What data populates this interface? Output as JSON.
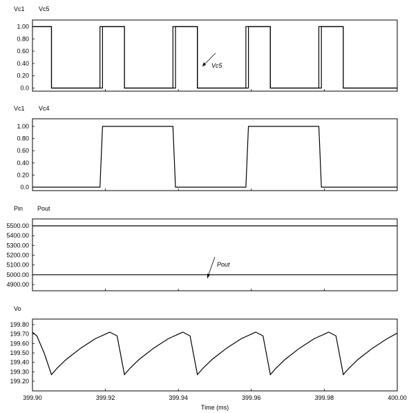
{
  "chart_data": [
    {
      "type": "line",
      "legend": [
        "Vc1",
        "Vc5"
      ],
      "ylim": [
        0,
        1.0
      ],
      "yticks": [
        "1.00",
        "0.80",
        "0.60",
        "0.40",
        "0.20",
        "0.0"
      ],
      "annotation": "Vc5",
      "series": [
        {
          "name": "Vc1",
          "x": [
            399.9,
            399.9052,
            399.9052,
            399.9192,
            399.9192,
            399.9252,
            399.9252,
            399.9392,
            399.9392,
            399.9452,
            399.9452,
            399.9592,
            399.9592,
            399.9652,
            399.9652,
            399.9792,
            399.9792,
            399.9852,
            399.9852,
            400.0
          ],
          "y": [
            1,
            1,
            0,
            0,
            1,
            1,
            0,
            0,
            1,
            1,
            0,
            0,
            1,
            1,
            0,
            0,
            1,
            1,
            0,
            0
          ]
        },
        {
          "name": "Vc5",
          "x": [
            399.9,
            399.9052,
            399.9052,
            399.9185,
            399.9185,
            399.9252,
            399.9252,
            399.9385,
            399.9385,
            399.9452,
            399.9452,
            399.9585,
            399.9585,
            399.9652,
            399.9652,
            399.9785,
            399.9785,
            399.9852,
            399.9852,
            400.0
          ],
          "y": [
            1,
            1,
            0,
            0,
            1,
            1,
            0,
            0,
            1,
            1,
            0,
            0,
            1,
            1,
            0,
            0,
            1,
            1,
            0,
            0
          ]
        }
      ]
    },
    {
      "type": "line",
      "legend": [
        "Vc1",
        "Vc4"
      ],
      "ylim": [
        0,
        1.0
      ],
      "yticks": [
        "1.00",
        "0.80",
        "0.60",
        "0.40",
        "0.20",
        "0.0"
      ],
      "series": [
        {
          "name": "Vc4",
          "x": [
            399.9,
            399.9185,
            399.9192,
            399.9385,
            399.9392,
            399.9585,
            399.9592,
            399.9785,
            399.9792,
            400.0
          ],
          "y": [
            0,
            0,
            1,
            1,
            0,
            0,
            1,
            1,
            0,
            0
          ]
        }
      ]
    },
    {
      "type": "line",
      "legend": [
        "Pin",
        "Pout"
      ],
      "ylim": [
        4850,
        5520
      ],
      "yticks": [
        "5500.00",
        "5400.00",
        "5300.00",
        "5200.00",
        "5100.00",
        "5000.00",
        "4900.00"
      ],
      "annotation": "Pout",
      "series": [
        {
          "name": "Pin",
          "x": [
            399.9,
            400.0
          ],
          "y": [
            5500,
            5500
          ]
        },
        {
          "name": "Pout",
          "x": [
            399.9,
            400.0
          ],
          "y": [
            5000,
            5000
          ]
        }
      ]
    },
    {
      "type": "line",
      "legend": [
        "Vo"
      ],
      "ylim": [
        199.18,
        199.82
      ],
      "yticks": [
        "199.80",
        "199.70",
        "199.60",
        "199.50",
        "199.40",
        "199.30",
        "199.20"
      ],
      "series": [
        {
          "name": "Vo",
          "x": [
            399.9,
            399.9012,
            399.9032,
            399.9052,
            399.9068,
            399.9092,
            399.9132,
            399.9172,
            399.9212,
            399.9232,
            399.9252,
            399.9268,
            399.9292,
            399.9332,
            399.9372,
            399.9412,
            399.9432,
            399.9452,
            399.9468,
            399.9492,
            399.9532,
            399.9572,
            399.9612,
            399.9632,
            399.9652,
            399.9668,
            399.9692,
            399.9732,
            399.9772,
            399.9812,
            399.9832,
            399.9852,
            399.9868,
            399.9892,
            399.9932,
            399.9972,
            400.0
          ],
          "y": [
            199.72,
            199.68,
            199.5,
            199.27,
            199.34,
            199.43,
            199.55,
            199.65,
            199.72,
            199.68,
            199.27,
            199.34,
            199.43,
            199.55,
            199.65,
            199.72,
            199.68,
            199.27,
            199.34,
            199.43,
            199.55,
            199.65,
            199.72,
            199.68,
            199.27,
            199.34,
            199.43,
            199.55,
            199.65,
            199.72,
            199.68,
            199.27,
            199.34,
            199.43,
            199.55,
            199.65,
            199.71
          ]
        }
      ]
    }
  ],
  "x_axis": {
    "range": [
      399.9,
      400.0
    ],
    "tick_values": [
      399.9,
      399.92,
      399.94,
      399.96,
      399.98,
      400.0
    ],
    "tick_labels": [
      "399.90",
      "399.92",
      "399.94",
      "399.96",
      "399.98",
      "400.00"
    ],
    "label": "Time (ms)"
  },
  "colors": {
    "trace": "#000000",
    "frame": "#000000",
    "background": "#ffffff"
  }
}
